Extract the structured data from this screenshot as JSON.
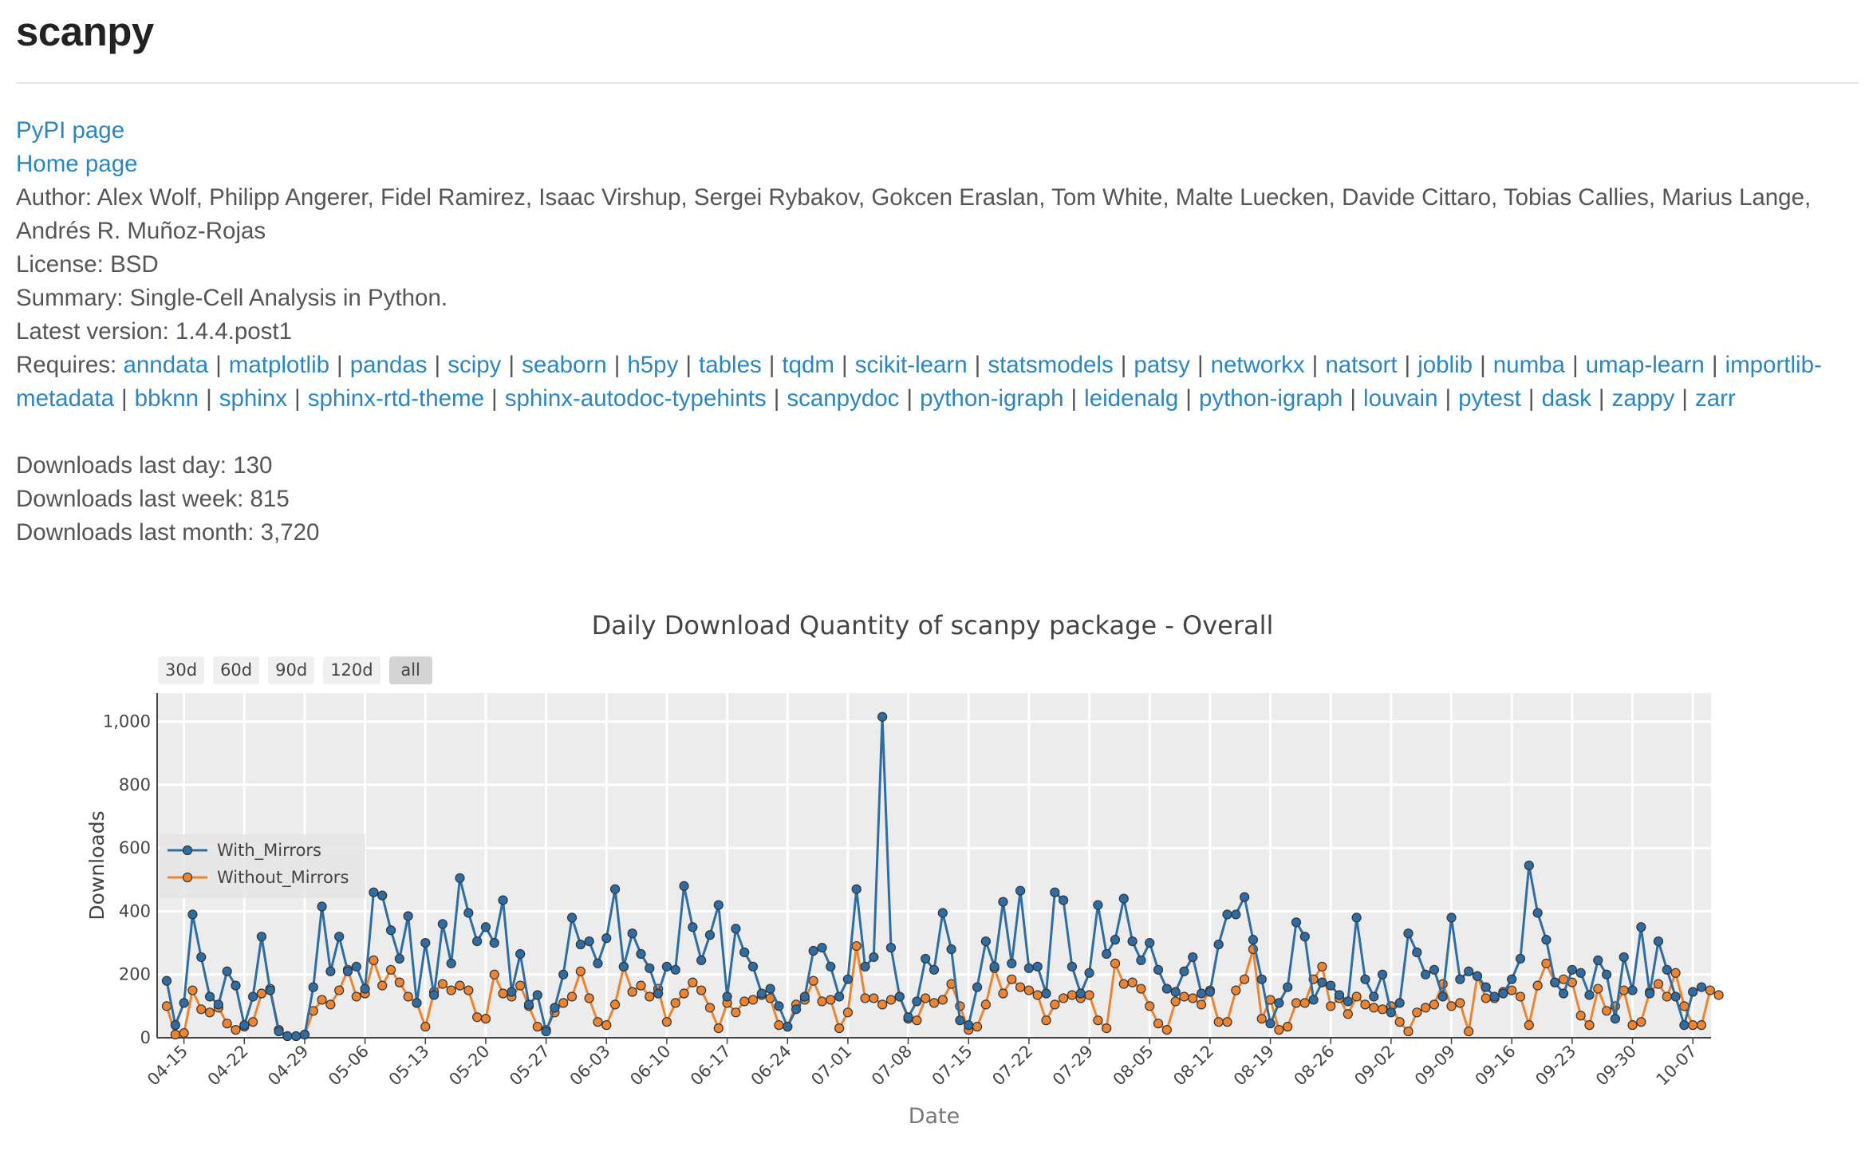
{
  "package": {
    "title": "scanpy"
  },
  "links": {
    "pypi": "PyPI page",
    "home": "Home page"
  },
  "meta": {
    "author": "Author: Alex Wolf, Philipp Angerer, Fidel Ramirez, Isaac Virshup, Sergei Rybakov, Gokcen Eraslan, Tom White, Malte Luecken, Davide Cittaro, Tobias Callies, Marius Lange, Andrés R. Muñoz-Rojas",
    "license": "License: BSD",
    "summary": "Summary: Single-Cell Analysis in Python.",
    "latest_version": "Latest version: 1.4.4.post1",
    "requires_label": "Requires:"
  },
  "requires": [
    "anndata",
    "matplotlib",
    "pandas",
    "scipy",
    "seaborn",
    "h5py",
    "tables",
    "tqdm",
    "scikit-learn",
    "statsmodels",
    "patsy",
    "networkx",
    "natsort",
    "joblib",
    "numba",
    "umap-learn",
    "importlib-metadata",
    "bbknn",
    "sphinx",
    "sphinx-rtd-theme",
    "sphinx-autodoc-typehints",
    "scanpydoc",
    "python-igraph",
    "leidenalg",
    "python-igraph",
    "louvain",
    "pytest",
    "dask",
    "zappy",
    "zarr"
  ],
  "downloads": {
    "last_day": "Downloads last day: 130",
    "last_week": "Downloads last week: 815",
    "last_month": "Downloads last month: 3,720"
  },
  "range_buttons": [
    {
      "label": "30d",
      "active": false
    },
    {
      "label": "60d",
      "active": false
    },
    {
      "label": "90d",
      "active": false
    },
    {
      "label": "120d",
      "active": false
    },
    {
      "label": "all",
      "active": true
    }
  ],
  "chart_data": {
    "type": "line",
    "title": "Daily Download Quantity of scanpy package - Overall",
    "xlabel": "Date",
    "ylabel": "Downloads",
    "ylim": [
      0,
      1090
    ],
    "yticks": [
      "0",
      "200",
      "400",
      "600",
      "800",
      "1,000"
    ],
    "grid": true,
    "legend_position": "left-middle",
    "x_start": "04-13",
    "x_ticks": [
      "04-15",
      "04-22",
      "04-29",
      "05-06",
      "05-13",
      "05-20",
      "05-27",
      "06-03",
      "06-10",
      "06-17",
      "06-24",
      "07-01",
      "07-08",
      "07-15",
      "07-22",
      "07-29",
      "08-05",
      "08-12",
      "08-19",
      "08-26",
      "09-02",
      "09-09",
      "09-16",
      "09-23",
      "09-30",
      "10-07"
    ],
    "colors": {
      "With_Mirrors": "#2e6da4",
      "Without_Mirrors": "#ee8330",
      "plot_bg": "#ececec"
    },
    "series": [
      {
        "name": "With_Mirrors",
        "values": [
          180,
          40,
          110,
          390,
          255,
          130,
          105,
          210,
          165,
          40,
          130,
          320,
          150,
          20,
          5,
          5,
          10,
          160,
          415,
          210,
          320,
          210,
          225,
          155,
          460,
          450,
          340,
          250,
          385,
          110,
          300,
          135,
          360,
          235,
          505,
          395,
          305,
          350,
          300,
          435,
          145,
          265,
          105,
          135,
          20,
          95,
          200,
          380,
          295,
          305,
          235,
          315,
          470,
          225,
          330,
          265,
          220,
          140,
          225,
          215,
          480,
          350,
          245,
          325,
          420,
          130,
          345,
          270,
          225,
          140,
          155,
          100,
          35,
          90,
          130,
          275,
          285,
          225,
          130,
          185,
          470,
          225,
          255,
          1015,
          285,
          130,
          65,
          115,
          250,
          215,
          395,
          280,
          55,
          40,
          160,
          305,
          225,
          430,
          235,
          465,
          220,
          225,
          140,
          460,
          435,
          225,
          140,
          205,
          420,
          265,
          310,
          440,
          305,
          245,
          300,
          215,
          155,
          145,
          210,
          255,
          140,
          145,
          295,
          390,
          390,
          445,
          310,
          185,
          45,
          110,
          160,
          365,
          320,
          120,
          175,
          165,
          135,
          115,
          380,
          185,
          130,
          200,
          80,
          110,
          330,
          270,
          200,
          215,
          130,
          380,
          185,
          210,
          195,
          160,
          130,
          140,
          185,
          250,
          545,
          395,
          310,
          175,
          140,
          215,
          205,
          135,
          245,
          200,
          60,
          255,
          150,
          350,
          140,
          305,
          215,
          130,
          40,
          145,
          160
        ]
      },
      {
        "name": "Without_Mirrors",
        "values": [
          100,
          10,
          15,
          150,
          90,
          80,
          95,
          45,
          25,
          35,
          50,
          140,
          155,
          25,
          5,
          5,
          10,
          85,
          120,
          105,
          150,
          215,
          130,
          140,
          245,
          165,
          215,
          175,
          130,
          110,
          35,
          145,
          170,
          150,
          165,
          150,
          65,
          60,
          200,
          140,
          130,
          165,
          100,
          35,
          25,
          80,
          110,
          130,
          210,
          125,
          50,
          40,
          105,
          225,
          145,
          165,
          130,
          155,
          50,
          110,
          140,
          175,
          150,
          95,
          30,
          110,
          80,
          115,
          120,
          135,
          125,
          40,
          35,
          105,
          120,
          180,
          115,
          120,
          30,
          80,
          290,
          125,
          125,
          105,
          120,
          130,
          60,
          55,
          125,
          110,
          120,
          170,
          100,
          25,
          35,
          105,
          220,
          140,
          185,
          160,
          150,
          135,
          55,
          105,
          125,
          135,
          125,
          135,
          55,
          30,
          235,
          170,
          175,
          155,
          100,
          45,
          25,
          115,
          130,
          125,
          105,
          150,
          50,
          50,
          150,
          185,
          280,
          60,
          120,
          25,
          35,
          110,
          110,
          185,
          225,
          100,
          125,
          75,
          130,
          105,
          95,
          90,
          100,
          50,
          20,
          80,
          95,
          105,
          170,
          100,
          110,
          20,
          195,
          125,
          125,
          145,
          150,
          130,
          40,
          165,
          235,
          175,
          185,
          175,
          70,
          40,
          155,
          85,
          100,
          150,
          40,
          50,
          145,
          170,
          130,
          205,
          100,
          40,
          40,
          150,
          135
        ]
      }
    ]
  }
}
